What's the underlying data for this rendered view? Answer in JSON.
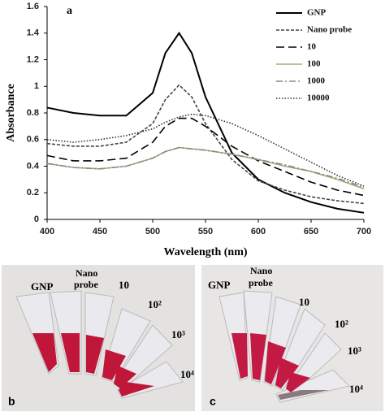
{
  "chart_data": {
    "type": "line",
    "panel": "a",
    "x": [
      400,
      425,
      450,
      475,
      500,
      512,
      525,
      537,
      550,
      575,
      600,
      625,
      650,
      675,
      700
    ],
    "series": [
      {
        "name": "GNP",
        "color": "#000000",
        "dash": "solid",
        "values": [
          0.84,
          0.8,
          0.78,
          0.78,
          0.95,
          1.25,
          1.4,
          1.25,
          0.92,
          0.5,
          0.3,
          0.2,
          0.13,
          0.08,
          0.05
        ]
      },
      {
        "name": "Nano probe",
        "color": "#444444",
        "dash": "shortdash",
        "values": [
          0.57,
          0.55,
          0.55,
          0.58,
          0.72,
          0.9,
          1.01,
          0.92,
          0.72,
          0.45,
          0.29,
          0.22,
          0.17,
          0.14,
          0.12
        ]
      },
      {
        "name": "10",
        "color": "#000000",
        "dash": "longdash",
        "values": [
          0.48,
          0.44,
          0.44,
          0.46,
          0.58,
          0.7,
          0.76,
          0.76,
          0.7,
          0.55,
          0.44,
          0.36,
          0.28,
          0.22,
          0.18
        ]
      },
      {
        "name": "100",
        "color": "#a8a878",
        "dash": "solid",
        "values": [
          0.42,
          0.39,
          0.38,
          0.4,
          0.46,
          0.51,
          0.54,
          0.53,
          0.52,
          0.49,
          0.45,
          0.4,
          0.36,
          0.3,
          0.23
        ]
      },
      {
        "name": "1000",
        "color": "#888888",
        "dash": "dashdot",
        "values": [
          0.42,
          0.39,
          0.38,
          0.4,
          0.46,
          0.51,
          0.54,
          0.53,
          0.52,
          0.49,
          0.45,
          0.41,
          0.36,
          0.31,
          0.24
        ]
      },
      {
        "name": "10000",
        "color": "#333333",
        "dash": "dotted",
        "values": [
          0.6,
          0.58,
          0.6,
          0.63,
          0.68,
          0.73,
          0.77,
          0.79,
          0.78,
          0.72,
          0.63,
          0.53,
          0.43,
          0.33,
          0.25
        ]
      }
    ],
    "x_label": "Wavelength (nm)",
    "y_label": "Absorbance",
    "xlim": [
      400,
      700
    ],
    "xticks": [
      400,
      450,
      500,
      550,
      600,
      650,
      700
    ],
    "ylim": [
      0,
      1.6
    ],
    "yticks": [
      0,
      0.2,
      0.4,
      0.6,
      0.8,
      1,
      1.2,
      1.4,
      1.6
    ],
    "legend": "upper right"
  },
  "photos": {
    "b": {
      "panel": "b",
      "labels": [
        "GNP",
        "Nano",
        "probe",
        "10",
        "10²",
        "10³",
        "10⁴"
      ]
    },
    "c": {
      "panel": "c",
      "labels": [
        "GNP",
        "Nano",
        "probe",
        "10",
        "10²",
        "10³",
        "10⁴"
      ]
    }
  }
}
